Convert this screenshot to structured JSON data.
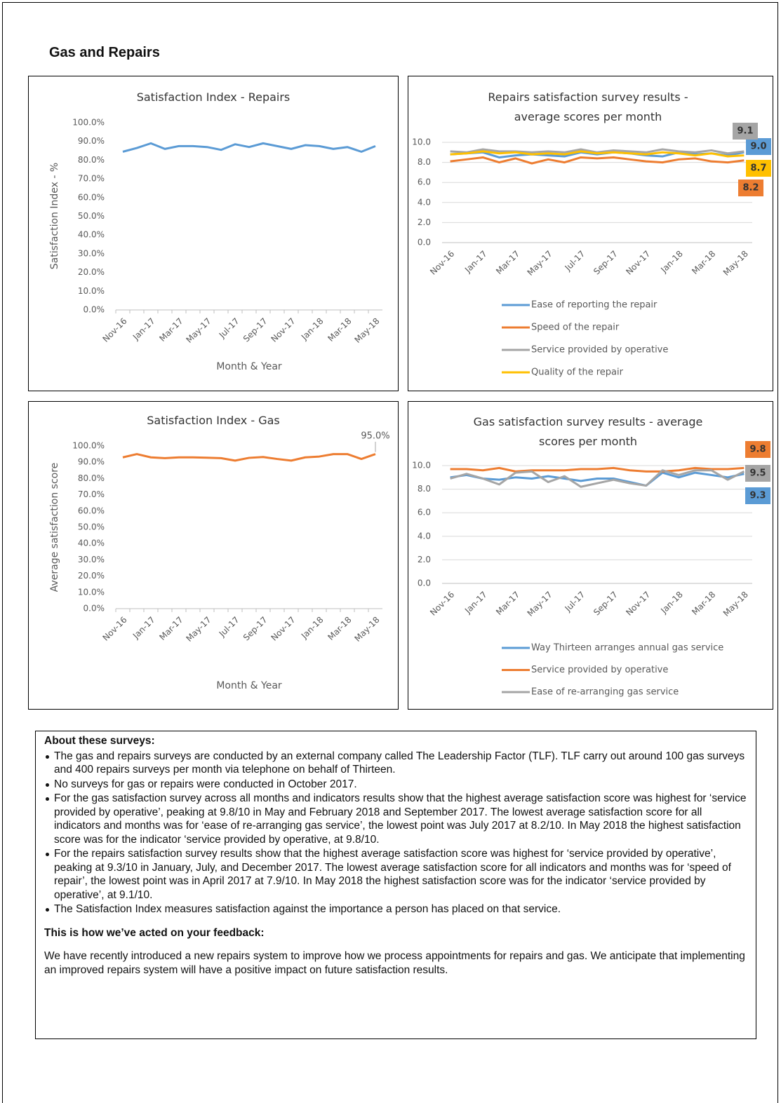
{
  "header": {
    "title": "Gas and Repairs"
  },
  "chart_data": [
    {
      "type": "line",
      "title": "Satisfaction Index - Repairs",
      "x_label": "Month & Year",
      "y_label": "Satisfaction Index - %",
      "categories": [
        "Nov-16",
        null,
        "Jan-17",
        null,
        "Mar-17",
        null,
        "May-17",
        null,
        "Jul-17",
        null,
        "Sep-17",
        null,
        "Nov-17",
        null,
        "Jan-18",
        null,
        "Mar-18",
        null,
        "May-18"
      ],
      "values": [
        84.5,
        86.5,
        89,
        86,
        87.5,
        87.5,
        87,
        85.5,
        88.5,
        87,
        89,
        87.5,
        86,
        88,
        87.5,
        86,
        87,
        84.5,
        87.5
      ],
      "color": "#5b9bd5",
      "ylim": [
        0,
        100
      ],
      "yticks": [
        {
          "value": 0,
          "label": "0.0%"
        },
        {
          "value": 10,
          "label": "10.0%"
        },
        {
          "value": 20,
          "label": "20.0%"
        },
        {
          "value": 30,
          "label": "30.0%"
        },
        {
          "value": 40,
          "label": "40.0%"
        },
        {
          "value": 50,
          "label": "50.0%"
        },
        {
          "value": 60,
          "label": "60.0%"
        },
        {
          "value": 70,
          "label": "70.0%"
        },
        {
          "value": 80,
          "label": "80.0%"
        },
        {
          "value": 90,
          "label": "90.0%"
        },
        {
          "value": 100,
          "label": "100.0%"
        }
      ],
      "grid": false
    },
    {
      "type": "line",
      "title": "Repairs satisfaction survey results - average scores per month",
      "categories": [
        "Nov-16",
        null,
        "Jan-17",
        null,
        "Mar-17",
        null,
        "May-17",
        null,
        "Jul-17",
        null,
        "Sep-17",
        null,
        "Nov-17",
        null,
        "Jan-18",
        null,
        "Mar-18",
        null,
        "May-18"
      ],
      "series": [
        {
          "name": "Ease of reporting the repair",
          "color": "#5b9bd5",
          "values": [
            8.8,
            8.9,
            9.0,
            8.5,
            8.7,
            8.8,
            8.7,
            8.6,
            9.0,
            8.8,
            9.0,
            8.9,
            8.7,
            8.6,
            9.0,
            8.8,
            8.9,
            8.7,
            9.0
          ],
          "value_labels": [
            null,
            null,
            null,
            null,
            null,
            null,
            null,
            null,
            null,
            null,
            null,
            null,
            null,
            null,
            null,
            null,
            null,
            null,
            "9.0"
          ]
        },
        {
          "name": "Speed of the repair",
          "color": "#ed7d31",
          "values": [
            8.1,
            8.3,
            8.5,
            8.0,
            8.4,
            7.9,
            8.3,
            8.0,
            8.5,
            8.4,
            8.5,
            8.3,
            8.1,
            8.0,
            8.3,
            8.4,
            8.1,
            8.0,
            8.2
          ],
          "value_labels": [
            null,
            null,
            null,
            null,
            null,
            null,
            null,
            null,
            null,
            null,
            null,
            null,
            null,
            null,
            null,
            null,
            null,
            null,
            "8.2"
          ]
        },
        {
          "name": "Service provided by operative",
          "color": "#a5a5a5",
          "values": [
            9.1,
            9.0,
            9.3,
            9.1,
            9.1,
            9.0,
            9.1,
            9.0,
            9.3,
            9.0,
            9.2,
            9.1,
            9.0,
            9.3,
            9.1,
            9.0,
            9.2,
            8.9,
            9.1
          ],
          "value_labels": [
            null,
            null,
            null,
            null,
            null,
            null,
            null,
            null,
            null,
            null,
            null,
            null,
            null,
            null,
            null,
            null,
            null,
            null,
            "9.1"
          ]
        },
        {
          "name": "Quality of the repair",
          "color": "#ffc000",
          "values": [
            8.8,
            8.9,
            9.1,
            8.9,
            9.0,
            8.8,
            8.9,
            8.8,
            9.1,
            8.9,
            9.0,
            8.9,
            8.8,
            9.0,
            8.9,
            8.7,
            8.9,
            8.6,
            8.7
          ],
          "value_labels": [
            null,
            null,
            null,
            null,
            null,
            null,
            null,
            null,
            null,
            null,
            null,
            null,
            null,
            null,
            null,
            null,
            null,
            null,
            "8.7"
          ]
        }
      ],
      "ylim": [
        0,
        10
      ],
      "yticks": [
        {
          "value": 0,
          "label": "0.0"
        },
        {
          "value": 2,
          "label": "2.0"
        },
        {
          "value": 4,
          "label": "4.0"
        },
        {
          "value": 6,
          "label": "6.0"
        },
        {
          "value": 8,
          "label": "8.0"
        },
        {
          "value": 10,
          "label": "10.0"
        }
      ],
      "grid": true,
      "legend": "bottom"
    },
    {
      "type": "line",
      "title": "Satisfaction Index - Gas",
      "x_label": "Month & Year",
      "y_label": "Average satisfaction score",
      "categories": [
        "Nov-16",
        null,
        "Jan-17",
        null,
        "Mar-17",
        null,
        "May-17",
        null,
        "Jul-17",
        null,
        "Sep-17",
        null,
        "Nov-17",
        null,
        "Jan-18",
        null,
        "Mar-18",
        null,
        "May-18"
      ],
      "values": [
        93,
        95,
        93,
        92.5,
        93,
        93,
        92.8,
        92.5,
        91,
        92.7,
        93.2,
        92,
        91,
        93,
        93.5,
        95,
        95,
        92,
        95
      ],
      "value_labels": [
        null,
        null,
        null,
        null,
        null,
        null,
        null,
        null,
        null,
        null,
        null,
        null,
        null,
        null,
        null,
        null,
        null,
        null,
        "95.0%"
      ],
      "color": "#ed7d31",
      "ylim": [
        0,
        100
      ],
      "yticks": [
        {
          "value": 0,
          "label": "0.0%"
        },
        {
          "value": 10,
          "label": "10.0%"
        },
        {
          "value": 20,
          "label": "20.0%"
        },
        {
          "value": 30,
          "label": "30.0%"
        },
        {
          "value": 40,
          "label": "40.0%"
        },
        {
          "value": 50,
          "label": "50.0%"
        },
        {
          "value": 60,
          "label": "60.0%"
        },
        {
          "value": 70,
          "label": "70.0%"
        },
        {
          "value": 80,
          "label": "80.0%"
        },
        {
          "value": 90,
          "label": "90.0%"
        },
        {
          "value": 100,
          "label": "100.0%"
        }
      ],
      "grid": false
    },
    {
      "type": "line",
      "title": "Gas satisfaction survey results - average scores per month",
      "categories": [
        "Nov-16",
        null,
        "Jan-17",
        null,
        "Mar-17",
        null,
        "May-17",
        null,
        "Jul-17",
        null,
        "Sep-17",
        null,
        "Nov-17",
        null,
        "Jan-18",
        null,
        "Mar-18",
        null,
        "May-18"
      ],
      "series": [
        {
          "name": "Way Thirteen arranges annual gas service",
          "color": "#5b9bd5",
          "values": [
            9.0,
            9.2,
            8.9,
            8.8,
            9.0,
            8.9,
            9.1,
            8.9,
            8.7,
            8.9,
            8.9,
            8.6,
            8.3,
            9.4,
            9.0,
            9.4,
            9.2,
            9.0,
            9.3
          ],
          "value_labels": [
            null,
            null,
            null,
            null,
            null,
            null,
            null,
            null,
            null,
            null,
            null,
            null,
            null,
            null,
            null,
            null,
            null,
            null,
            "9.3"
          ]
        },
        {
          "name": "Service provided by operative",
          "color": "#ed7d31",
          "values": [
            9.7,
            9.7,
            9.6,
            9.8,
            9.5,
            9.6,
            9.6,
            9.6,
            9.7,
            9.7,
            9.8,
            9.6,
            9.5,
            9.5,
            9.6,
            9.8,
            9.7,
            9.7,
            9.8
          ],
          "value_labels": [
            null,
            null,
            null,
            null,
            null,
            null,
            null,
            null,
            null,
            null,
            null,
            null,
            null,
            null,
            null,
            null,
            null,
            null,
            "9.8"
          ]
        },
        {
          "name": "Ease of re-arranging gas service",
          "color": "#a5a5a5",
          "values": [
            8.9,
            9.3,
            8.9,
            8.4,
            9.4,
            9.5,
            8.6,
            9.1,
            8.2,
            8.5,
            8.8,
            8.5,
            8.3,
            9.6,
            9.2,
            9.6,
            9.6,
            8.8,
            9.5
          ],
          "value_labels": [
            null,
            null,
            null,
            null,
            null,
            null,
            null,
            null,
            null,
            null,
            null,
            null,
            null,
            null,
            null,
            null,
            null,
            null,
            "9.5"
          ]
        }
      ],
      "ylim": [
        0,
        10
      ],
      "yticks": [
        {
          "value": 0,
          "label": "0.0"
        },
        {
          "value": 2,
          "label": "2.0"
        },
        {
          "value": 4,
          "label": "4.0"
        },
        {
          "value": 6,
          "label": "6.0"
        },
        {
          "value": 8,
          "label": "8.0"
        },
        {
          "value": 10,
          "label": "10.0"
        }
      ],
      "grid": true,
      "legend": "bottom"
    }
  ],
  "notes": {
    "heading": "About these surveys:",
    "bullets": [
      "The gas and repairs surveys are conducted by an external company called The Leadership Factor (TLF).  TLF carry out around 100 gas surveys and 400 repairs surveys per month via telephone on behalf of Thirteen.",
      "No surveys for gas or repairs were conducted in October 2017.",
      "For the gas satisfaction survey across all months and indicators results show that the highest average satisfaction score was highest for ‘service provided by operative’, peaking at 9.8/10 in May and February 2018 and September 2017. The lowest average satisfaction score for all indicators and months was for ‘ease of re-arranging gas service’, the lowest point was July 2017 at 8.2/10. In May 2018 the highest satisfaction score was for the indicator ‘service provided by operative, at 9.8/10.",
      "For the repairs satisfaction survey results show that the highest average satisfaction score was highest for ‘service provided by operative’, peaking at 9.3/10 in January, July, and December 2017. The lowest average satisfaction score for all indicators and months was for ‘speed of repair’, the lowest point was in April 2017 at 7.9/10. In May 2018 the highest satisfaction score was for the indicator ‘service provided by operative’, at 9.1/10.",
      "The Satisfaction Index measures satisfaction against the importance a person has placed on that service."
    ],
    "action_heading": "This is how we’ve acted on your feedback:",
    "action_text": "We have recently introduced a new repairs system to improve how we process appointments for repairs and gas. We anticipate that implementing an improved repairs system will have a positive impact on future satisfaction results."
  }
}
